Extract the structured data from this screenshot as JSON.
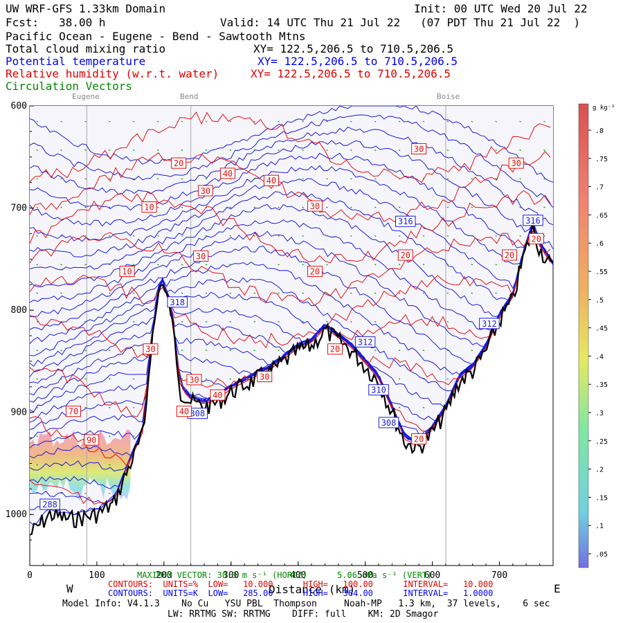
{
  "header": {
    "line1_left": "UW WRF-GFS 1.33km Domain",
    "line1_right": "Init: 00 UTC Wed 20 Jul 22",
    "line2_left": "Fcst:   38.00 h",
    "line2_right": "Valid: 14 UTC Thu 21 Jul 22   (07 PDT Thu 21 Jul 22  )",
    "region": "Pacific Ocean - Eugene - Bend - Sawtooth Mtns",
    "field1": "Total cloud mixing ratio",
    "field1_xy": "XY= 122.5,206.5 to 710.5,206.5",
    "field2": "Potential temperature",
    "field2_xy": "XY= 122.5,206.5 to 710.5,206.5",
    "field3": "Relative humidity (w.r.t. water)",
    "field3_xy": "XY= 122.5,206.5 to 710.5,206.5",
    "field4": "Circulation Vectors"
  },
  "locations": [
    {
      "name": "Eugene",
      "x": 85
    },
    {
      "name": "Bend",
      "x": 240
    },
    {
      "name": "Boise",
      "x": 620
    }
  ],
  "colorbar": {
    "unit": "g kg⁻¹",
    "ticks": [
      ".05",
      ".1",
      ".15",
      ".2",
      ".25",
      ".3",
      ".35",
      ".4",
      ".45",
      ".5",
      ".55",
      ".6",
      ".65",
      ".7",
      ".75",
      ".8"
    ]
  },
  "footer": {
    "west": "W",
    "east": "E",
    "xlabel": "Distance (km)",
    "max_vector": "MAXIMUM VECTOR: 30.3 m s⁻¹ (HORIZ)      5.06 dPa s⁻¹ (VERT)",
    "red_contours": "CONTOURS:  UNITS=%  LOW=   10.000      HIGH=   100.00      INTERVAL=   10.000",
    "blue_contours": "CONTOURS:  UNITS=K  LOW=   285.00      HIGH=   364.00      INTERVAL=   1.0000",
    "model_info": "Model Info: V4.1.3    No Cu   YSU PBL  Thompson     Noah-MP   1.3 km,  37 levels,    6 sec",
    "model_info2": "LW: RRTMG SW: RRTMG    DIFF: full    KM: 2D Smagor"
  },
  "chart_data": {
    "type": "cross-section",
    "xlabel": "Distance (km)",
    "ylabel": "",
    "xlim": [
      0,
      780
    ],
    "ylim": [
      1050,
      600
    ],
    "x_ticks": [
      0,
      100,
      200,
      300,
      400,
      500,
      600,
      700
    ],
    "y_ticks": [
      600,
      700,
      800,
      900,
      1000
    ],
    "y_tick_labels": [
      "600",
      "700",
      "800",
      "900",
      "1000"
    ],
    "terrain": {
      "x": [
        0,
        30,
        60,
        80,
        100,
        125,
        150,
        170,
        180,
        195,
        210,
        225,
        240,
        260,
        280,
        300,
        330,
        360,
        380,
        400,
        420,
        440,
        460,
        480,
        500,
        520,
        540,
        560,
        580,
        600,
        620,
        640,
        660,
        680,
        700,
        710,
        720,
        735,
        750,
        760,
        780
      ],
      "p": [
        1020,
        1000,
        1005,
        1003,
        1000,
        990,
        950,
        920,
        840,
        770,
        800,
        880,
        890,
        895,
        890,
        880,
        870,
        860,
        850,
        840,
        835,
        820,
        830,
        840,
        855,
        870,
        900,
        930,
        935,
        920,
        900,
        870,
        860,
        840,
        810,
        800,
        790,
        750,
        720,
        740,
        760
      ]
    },
    "theta_contours": [
      {
        "label": "288",
        "x": 30,
        "p": 990
      },
      {
        "label": "308",
        "x": 535,
        "p": 910
      },
      {
        "label": "310",
        "x": 520,
        "p": 878
      },
      {
        "label": "312",
        "x": 500,
        "p": 831
      },
      {
        "label": "312",
        "x": 685,
        "p": 813
      },
      {
        "label": "316",
        "x": 560,
        "p": 713
      },
      {
        "label": "316",
        "x": 750,
        "p": 712
      },
      {
        "label": "318",
        "x": 220,
        "p": 792
      },
      {
        "label": "308",
        "x": 250,
        "p": 901
      }
    ],
    "rh_contours": [
      {
        "label": "10",
        "x": 178,
        "p": 699
      },
      {
        "label": "10",
        "x": 145,
        "p": 762
      },
      {
        "label": "20",
        "x": 222,
        "p": 656
      },
      {
        "label": "30",
        "x": 262,
        "p": 683
      },
      {
        "label": "40",
        "x": 295,
        "p": 666
      },
      {
        "label": "40",
        "x": 360,
        "p": 673
      },
      {
        "label": "30",
        "x": 425,
        "p": 698
      },
      {
        "label": "30",
        "x": 255,
        "p": 747
      },
      {
        "label": "20",
        "x": 425,
        "p": 762
      },
      {
        "label": "30",
        "x": 580,
        "p": 642
      },
      {
        "label": "30",
        "x": 725,
        "p": 656
      },
      {
        "label": "20",
        "x": 560,
        "p": 746
      },
      {
        "label": "20",
        "x": 715,
        "p": 746
      },
      {
        "label": "20",
        "x": 755,
        "p": 730
      },
      {
        "label": "30",
        "x": 180,
        "p": 838
      },
      {
        "label": "30",
        "x": 245,
        "p": 868
      },
      {
        "label": "40",
        "x": 280,
        "p": 883
      },
      {
        "label": "40",
        "x": 230,
        "p": 899
      },
      {
        "label": "30",
        "x": 350,
        "p": 865
      },
      {
        "label": "20",
        "x": 455,
        "p": 838
      },
      {
        "label": "70",
        "x": 65,
        "p": 899
      },
      {
        "label": "90",
        "x": 92,
        "p": 927
      },
      {
        "label": "20",
        "x": 580,
        "p": 926
      }
    ]
  }
}
